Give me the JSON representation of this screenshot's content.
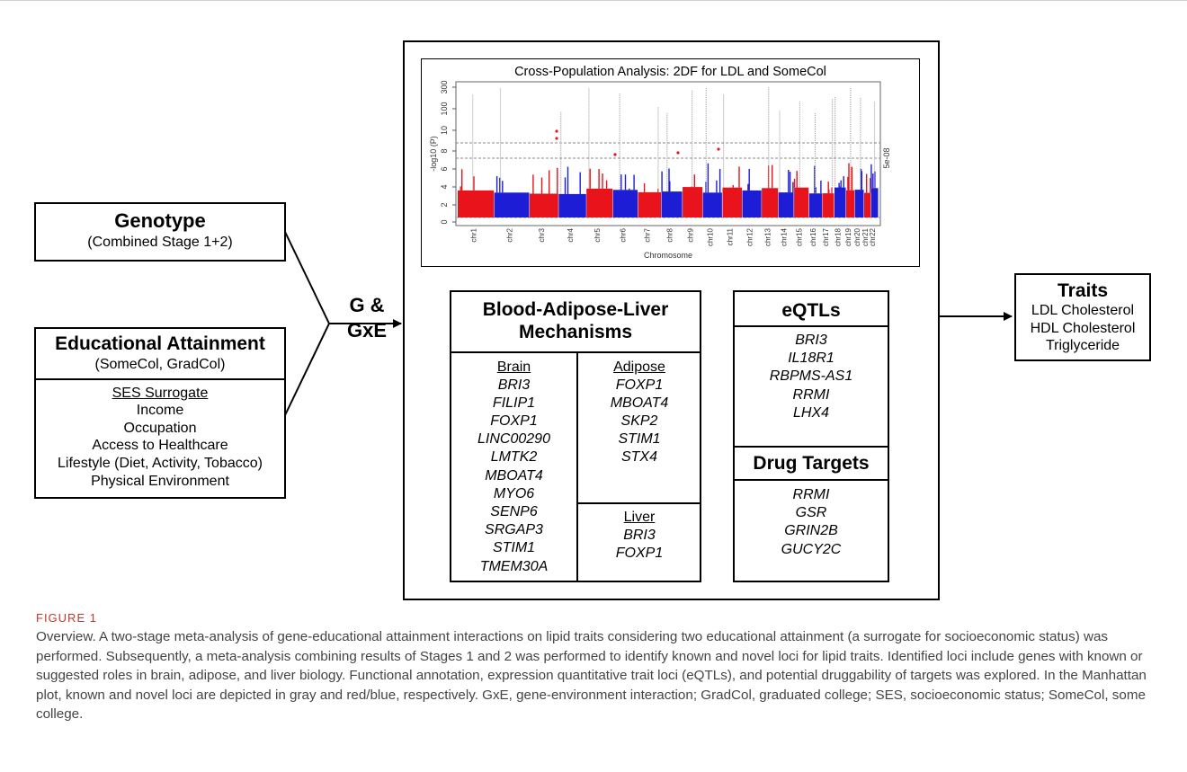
{
  "manhattan": {
    "title": "Cross-Population Analysis: 2DF for LDL and SomeCol",
    "xlabel": "Chromosome",
    "ylabel": "-log10 (P)",
    "right_label": "5e-08",
    "y_ticks": [
      "0",
      "2",
      "4",
      "6",
      "8",
      "10",
      "100",
      "300"
    ],
    "chromosomes": [
      "chr1",
      "chr2",
      "chr3",
      "chr4",
      "chr5",
      "chr6",
      "chr7",
      "chr8",
      "chr9",
      "chr10",
      "chr11",
      "chr12",
      "chr13",
      "chr14",
      "chr15",
      "chr16",
      "chr17",
      "chr18",
      "chr19",
      "chr20",
      "chr21",
      "chr22"
    ],
    "colors": {
      "red": "#e8131b",
      "blue": "#1d1dd6",
      "gray": "#a9a9a9"
    }
  },
  "genotype": {
    "title": "Genotype",
    "subtitle": "(Combined Stage 1+2)"
  },
  "education": {
    "title": "Educational Attainment",
    "subtitle": "(SomeCol, GradCol)",
    "ses_header": "SES Surrogate",
    "items": [
      "Income",
      "Occupation",
      "Access to Healthcare",
      "Lifestyle (Diet, Activity, Tobacco)",
      "Physical Environment"
    ]
  },
  "gxe": {
    "line1": "G &",
    "line2": "GxE"
  },
  "mechanisms": {
    "title_line1": "Blood-Adipose-Liver",
    "title_line2": "Mechanisms",
    "brain": {
      "header": "Brain",
      "genes": [
        "BRI3",
        "FILIP1",
        "FOXP1",
        "LINC00290",
        "LMTK2",
        "MBOAT4",
        "MYO6",
        "SENP6",
        "SRGAP3",
        "STIM1",
        "TMEM30A"
      ]
    },
    "adipose": {
      "header": "Adipose",
      "genes": [
        "FOXP1",
        "MBOAT4",
        "SKP2",
        "STIM1",
        "STX4"
      ]
    },
    "liver": {
      "header": "Liver",
      "genes": [
        "BRI3",
        "FOXP1"
      ]
    }
  },
  "eqtls": {
    "title": "eQTLs",
    "genes": [
      "BRI3",
      "IL18R1",
      "RBPMS-AS1",
      "RRMI",
      "LHX4"
    ]
  },
  "drugs": {
    "title": "Drug Targets",
    "genes": [
      "RRMI",
      "GSR",
      "GRIN2B",
      "GUCY2C"
    ]
  },
  "traits": {
    "title": "Traits",
    "items": [
      "LDL Cholesterol",
      "HDL Cholesterol",
      "Triglyceride"
    ]
  },
  "figure": {
    "label": "FIGURE 1",
    "caption": "Overview. A two-stage meta-analysis of gene-educational attainment interactions on lipid traits considering two educational attainment (a surrogate for socioeconomic status) was performed. Subsequently, a meta-analysis combining results of Stages 1 and 2 was performed to identify known and novel loci for lipid traits. Identified loci include genes with known or suggested roles in brain, adipose, and liver biology. Functional annotation, expression quantitative trait loci (eQTLs), and potential druggability of targets was explored. In the Manhattan plot, known and novel loci are depicted in gray and red/blue, respectively. GxE, gene-environment interaction; GradCol, graduated college; SES, socioeconomic status; SomeCol, some college."
  }
}
